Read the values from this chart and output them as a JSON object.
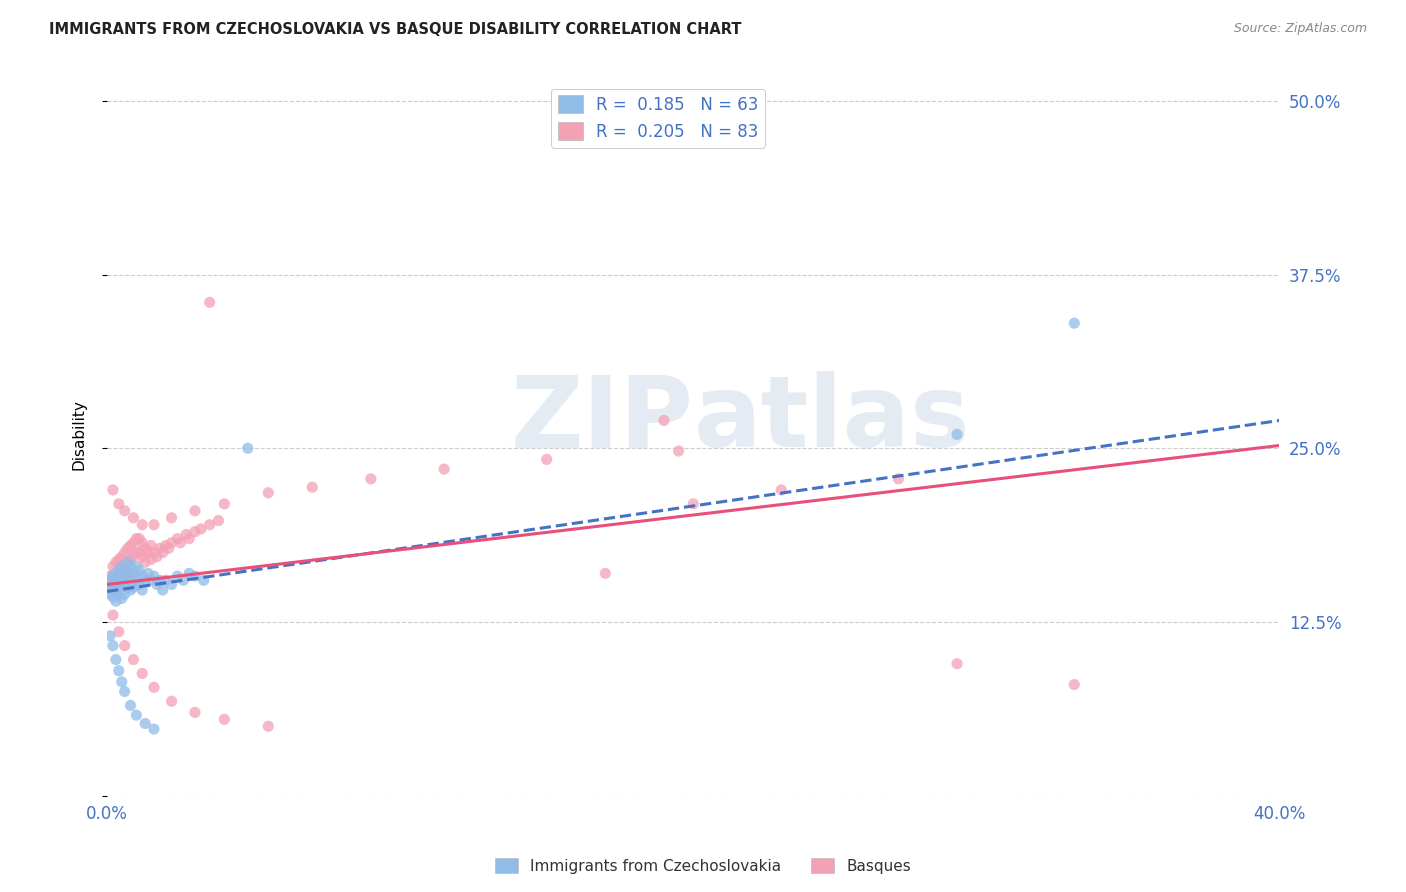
{
  "title": "IMMIGRANTS FROM CZECHOSLOVAKIA VS BASQUE DISABILITY CORRELATION CHART",
  "source": "Source: ZipAtlas.com",
  "ylabel": "Disability",
  "xlim": [
    0.0,
    0.4
  ],
  "ylim": [
    0.0,
    0.52
  ],
  "x_ticks": [
    0.0,
    0.1,
    0.2,
    0.3,
    0.4
  ],
  "x_tick_labels": [
    "0.0%",
    "",
    "",
    "",
    "40.0%"
  ],
  "y_ticks": [
    0.0,
    0.125,
    0.25,
    0.375,
    0.5
  ],
  "y_tick_labels": [
    "",
    "12.5%",
    "25.0%",
    "37.5%",
    "50.0%"
  ],
  "blue_color": "#90BCE8",
  "pink_color": "#F4A0B5",
  "blue_line_color": "#4472C4",
  "pink_line_color": "#E8507A",
  "watermark_zip": "ZIP",
  "watermark_atlas": "atlas",
  "blue_scatter_x": [
    0.001,
    0.001,
    0.001,
    0.002,
    0.002,
    0.002,
    0.002,
    0.003,
    0.003,
    0.003,
    0.003,
    0.004,
    0.004,
    0.004,
    0.004,
    0.005,
    0.005,
    0.005,
    0.005,
    0.006,
    0.006,
    0.006,
    0.007,
    0.007,
    0.007,
    0.008,
    0.008,
    0.008,
    0.009,
    0.009,
    0.01,
    0.01,
    0.011,
    0.011,
    0.012,
    0.012,
    0.013,
    0.014,
    0.015,
    0.016,
    0.017,
    0.018,
    0.019,
    0.02,
    0.022,
    0.024,
    0.026,
    0.028,
    0.03,
    0.033,
    0.001,
    0.002,
    0.003,
    0.004,
    0.005,
    0.006,
    0.008,
    0.01,
    0.013,
    0.016,
    0.048,
    0.29,
    0.33
  ],
  "blue_scatter_y": [
    0.155,
    0.15,
    0.145,
    0.158,
    0.152,
    0.148,
    0.143,
    0.16,
    0.155,
    0.148,
    0.14,
    0.162,
    0.158,
    0.152,
    0.145,
    0.165,
    0.158,
    0.15,
    0.142,
    0.16,
    0.152,
    0.145,
    0.168,
    0.16,
    0.15,
    0.165,
    0.155,
    0.148,
    0.16,
    0.15,
    0.165,
    0.155,
    0.162,
    0.152,
    0.158,
    0.148,
    0.155,
    0.16,
    0.155,
    0.158,
    0.152,
    0.155,
    0.148,
    0.155,
    0.152,
    0.158,
    0.155,
    0.16,
    0.158,
    0.155,
    0.115,
    0.108,
    0.098,
    0.09,
    0.082,
    0.075,
    0.065,
    0.058,
    0.052,
    0.048,
    0.25,
    0.26,
    0.34
  ],
  "pink_scatter_x": [
    0.001,
    0.001,
    0.002,
    0.002,
    0.002,
    0.003,
    0.003,
    0.003,
    0.004,
    0.004,
    0.004,
    0.005,
    0.005,
    0.005,
    0.006,
    0.006,
    0.007,
    0.007,
    0.007,
    0.008,
    0.008,
    0.008,
    0.009,
    0.009,
    0.01,
    0.01,
    0.011,
    0.011,
    0.012,
    0.012,
    0.013,
    0.013,
    0.014,
    0.015,
    0.015,
    0.016,
    0.017,
    0.018,
    0.019,
    0.02,
    0.021,
    0.022,
    0.024,
    0.025,
    0.027,
    0.028,
    0.03,
    0.032,
    0.035,
    0.038,
    0.002,
    0.004,
    0.006,
    0.009,
    0.012,
    0.016,
    0.022,
    0.03,
    0.04,
    0.055,
    0.002,
    0.004,
    0.006,
    0.009,
    0.012,
    0.016,
    0.022,
    0.03,
    0.04,
    0.055,
    0.07,
    0.09,
    0.115,
    0.15,
    0.195,
    0.2,
    0.23,
    0.27,
    0.17,
    0.29,
    0.035,
    0.19,
    0.33
  ],
  "pink_scatter_y": [
    0.158,
    0.15,
    0.165,
    0.158,
    0.148,
    0.168,
    0.16,
    0.15,
    0.17,
    0.162,
    0.152,
    0.172,
    0.165,
    0.155,
    0.175,
    0.165,
    0.178,
    0.168,
    0.158,
    0.18,
    0.17,
    0.16,
    0.182,
    0.172,
    0.185,
    0.175,
    0.185,
    0.175,
    0.182,
    0.172,
    0.178,
    0.168,
    0.175,
    0.18,
    0.17,
    0.175,
    0.172,
    0.178,
    0.175,
    0.18,
    0.178,
    0.182,
    0.185,
    0.182,
    0.188,
    0.185,
    0.19,
    0.192,
    0.195,
    0.198,
    0.13,
    0.118,
    0.108,
    0.098,
    0.088,
    0.078,
    0.068,
    0.06,
    0.055,
    0.05,
    0.22,
    0.21,
    0.205,
    0.2,
    0.195,
    0.195,
    0.2,
    0.205,
    0.21,
    0.218,
    0.222,
    0.228,
    0.235,
    0.242,
    0.248,
    0.21,
    0.22,
    0.228,
    0.16,
    0.095,
    0.355,
    0.27,
    0.08
  ],
  "blue_line_x": [
    0.0,
    0.4
  ],
  "blue_line_y": [
    0.147,
    0.27
  ],
  "pink_line_x": [
    0.0,
    0.4
  ],
  "pink_line_y": [
    0.152,
    0.252
  ],
  "background_color": "#ffffff",
  "grid_color": "#cccccc"
}
